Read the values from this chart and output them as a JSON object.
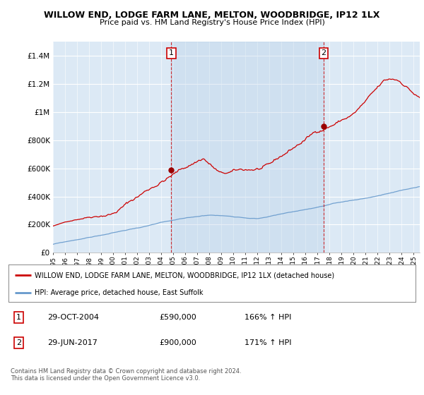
{
  "title": "WILLOW END, LODGE FARM LANE, MELTON, WOODBRIDGE, IP12 1LX",
  "subtitle": "Price paid vs. HM Land Registry's House Price Index (HPI)",
  "background_color": "#ffffff",
  "plot_bg_color": "#dce9f5",
  "grid_color": "#ffffff",
  "ylim": [
    0,
    1500000
  ],
  "yticks": [
    0,
    200000,
    400000,
    600000,
    800000,
    1000000,
    1200000,
    1400000
  ],
  "ytick_labels": [
    "£0",
    "£200K",
    "£400K",
    "£600K",
    "£800K",
    "£1M",
    "£1.2M",
    "£1.4M"
  ],
  "house_color": "#cc0000",
  "hpi_color": "#6699cc",
  "marker1_x": 2004.83,
  "marker1_y": 590000,
  "marker2_x": 2017.5,
  "marker2_y": 900000,
  "shade_color": "#c5d9ee",
  "legend_house_label": "WILLOW END, LODGE FARM LANE, MELTON, WOODBRIDGE, IP12 1LX (detached house)",
  "legend_hpi_label": "HPI: Average price, detached house, East Suffolk",
  "annotation1_num": "1",
  "annotation1_date": "29-OCT-2004",
  "annotation1_price": "£590,000",
  "annotation1_hpi": "166% ↑ HPI",
  "annotation2_num": "2",
  "annotation2_date": "29-JUN-2017",
  "annotation2_price": "£900,000",
  "annotation2_hpi": "171% ↑ HPI",
  "footnote": "Contains HM Land Registry data © Crown copyright and database right 2024.\nThis data is licensed under the Open Government Licence v3.0.",
  "xmin": 1995,
  "xmax": 2025.5
}
